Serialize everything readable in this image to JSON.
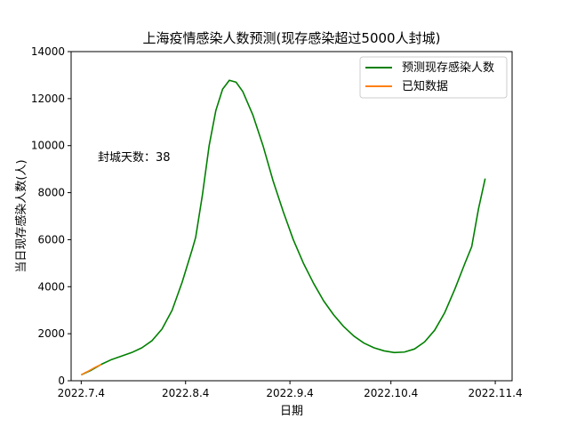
{
  "chart_data": {
    "type": "line",
    "title": "上海疫情感染人数预测(现存感染超过5000人封城)",
    "xlabel": "日期",
    "ylabel": "当日现存感染人数(人)",
    "xlim": [
      "2022-07-01",
      "2022-11-09"
    ],
    "ylim": [
      0,
      14000
    ],
    "x_ticks": [
      {
        "date": "2022-07-04",
        "label": "2022.7.4"
      },
      {
        "date": "2022-08-04",
        "label": "2022.8.4"
      },
      {
        "date": "2022-09-04",
        "label": "2022.9.4"
      },
      {
        "date": "2022-10-04",
        "label": "2022.10.4"
      },
      {
        "date": "2022-11-04",
        "label": "2022.11.4"
      }
    ],
    "y_ticks": [
      0,
      2000,
      4000,
      6000,
      8000,
      10000,
      12000,
      14000
    ],
    "grid": false,
    "legend_position": "top-right",
    "annotation": "封城天数：38",
    "series": [
      {
        "name": "预测现存感染人数",
        "color": "#008000",
        "points": [
          [
            "2022-07-04",
            250
          ],
          [
            "2022-07-07",
            450
          ],
          [
            "2022-07-10",
            700
          ],
          [
            "2022-07-13",
            900
          ],
          [
            "2022-07-16",
            1050
          ],
          [
            "2022-07-19",
            1200
          ],
          [
            "2022-07-22",
            1400
          ],
          [
            "2022-07-25",
            1700
          ],
          [
            "2022-07-28",
            2200
          ],
          [
            "2022-07-31",
            3000
          ],
          [
            "2022-08-03",
            4200
          ],
          [
            "2022-08-06",
            5600
          ],
          [
            "2022-08-07",
            6100
          ],
          [
            "2022-08-09",
            7900
          ],
          [
            "2022-08-11",
            10000
          ],
          [
            "2022-08-13",
            11500
          ],
          [
            "2022-08-15",
            12400
          ],
          [
            "2022-08-17",
            12780
          ],
          [
            "2022-08-19",
            12700
          ],
          [
            "2022-08-21",
            12300
          ],
          [
            "2022-08-24",
            11300
          ],
          [
            "2022-08-27",
            10000
          ],
          [
            "2022-08-30",
            8500
          ],
          [
            "2022-09-02",
            7200
          ],
          [
            "2022-09-05",
            6000
          ],
          [
            "2022-09-08",
            5000
          ],
          [
            "2022-09-11",
            4150
          ],
          [
            "2022-09-14",
            3400
          ],
          [
            "2022-09-17",
            2800
          ],
          [
            "2022-09-20",
            2300
          ],
          [
            "2022-09-23",
            1900
          ],
          [
            "2022-09-26",
            1600
          ],
          [
            "2022-09-29",
            1400
          ],
          [
            "2022-10-02",
            1270
          ],
          [
            "2022-10-05",
            1200
          ],
          [
            "2022-10-08",
            1220
          ],
          [
            "2022-10-11",
            1350
          ],
          [
            "2022-10-14",
            1650
          ],
          [
            "2022-10-17",
            2150
          ],
          [
            "2022-10-20",
            2900
          ],
          [
            "2022-10-23",
            3900
          ],
          [
            "2022-10-26",
            5000
          ],
          [
            "2022-10-28",
            5700
          ],
          [
            "2022-10-30",
            7300
          ],
          [
            "2022-11-01",
            8600
          ]
        ]
      },
      {
        "name": "已知数据",
        "color": "#ff7f0e",
        "points": [
          [
            "2022-07-04",
            250
          ],
          [
            "2022-07-05",
            330
          ],
          [
            "2022-07-06",
            400
          ],
          [
            "2022-07-07",
            480
          ],
          [
            "2022-07-08",
            560
          ],
          [
            "2022-07-09",
            630
          ],
          [
            "2022-07-10",
            690
          ]
        ]
      }
    ]
  }
}
